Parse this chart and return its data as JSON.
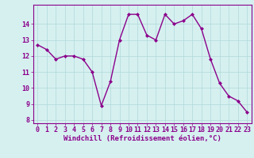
{
  "x": [
    0,
    1,
    2,
    3,
    4,
    5,
    6,
    7,
    8,
    9,
    10,
    11,
    12,
    13,
    14,
    15,
    16,
    17,
    18,
    19,
    20,
    21,
    22,
    23
  ],
  "y": [
    12.7,
    12.4,
    11.8,
    12.0,
    12.0,
    11.8,
    11.0,
    8.9,
    10.4,
    13.0,
    14.6,
    14.6,
    13.3,
    13.0,
    14.6,
    14.0,
    14.2,
    14.6,
    13.7,
    11.8,
    10.3,
    9.5,
    9.2,
    8.5
  ],
  "line_color": "#8B008B",
  "marker": "D",
  "markersize": 2,
  "linewidth": 1.0,
  "xlabel": "Windchill (Refroidissement éolien,°C)",
  "xlabel_fontsize": 6.5,
  "bg_color": "#d6f0f0",
  "grid_color": "#b0d8d8",
  "tick_fontsize": 6,
  "ylim": [
    7.8,
    15.2
  ],
  "yticks": [
    8,
    9,
    10,
    11,
    12,
    13,
    14
  ],
  "xticks": [
    0,
    1,
    2,
    3,
    4,
    5,
    6,
    7,
    8,
    9,
    10,
    11,
    12,
    13,
    14,
    15,
    16,
    17,
    18,
    19,
    20,
    21,
    22,
    23
  ],
  "xlim": [
    -0.5,
    23.5
  ]
}
